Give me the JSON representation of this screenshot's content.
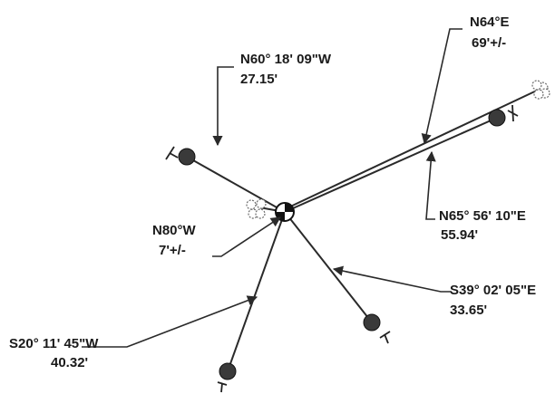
{
  "labels": {
    "n64e_bearing": "N64°E",
    "n64e_distance": "69'+/-",
    "n60w_bearing": "N60° 18' 09\"W",
    "n60w_distance": "27.15'",
    "n65e_bearing": "N65° 56' 10\"E",
    "n65e_distance": "55.94'",
    "n80w_bearing": "N80°W",
    "n80w_distance": "7'+/-",
    "s39e_bearing": "S39° 02' 05\"E",
    "s39e_distance": "33.65'",
    "s20w_bearing": "S20° 11' 45\"W",
    "s20w_distance": "40.32'"
  },
  "icons": {
    "center": "survey-control-point-icon",
    "monument": "monument-dot-icon",
    "tree": "tree-cloud-icon"
  }
}
